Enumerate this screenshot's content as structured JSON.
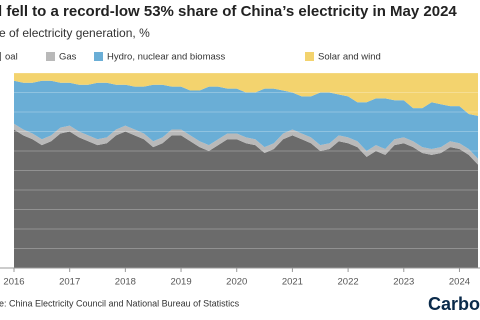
{
  "chart_data": {
    "type": "stacked-area",
    "title": "l fell to a record-low 53% share of China’s electricity in May 2024",
    "subtitle": "e of electricity generation, %",
    "source": "e: China Electricity Council and National Bureau of Statistics",
    "logo": "CarbonB",
    "x": [
      2016,
      2016.167,
      2016.333,
      2016.5,
      2016.667,
      2016.833,
      2017,
      2017.167,
      2017.333,
      2017.5,
      2017.667,
      2017.833,
      2018,
      2018.167,
      2018.333,
      2018.5,
      2018.667,
      2018.833,
      2019,
      2019.167,
      2019.333,
      2019.5,
      2019.667,
      2019.833,
      2020,
      2020.167,
      2020.333,
      2020.5,
      2020.667,
      2020.833,
      2021,
      2021.167,
      2021.333,
      2021.5,
      2021.667,
      2021.833,
      2022,
      2022.167,
      2022.333,
      2022.5,
      2022.667,
      2022.833,
      2023,
      2023.167,
      2023.333,
      2023.5,
      2023.667,
      2023.833,
      2024,
      2024.167,
      2024.333
    ],
    "xlim": [
      2016,
      2024.333
    ],
    "xticks": [
      2016,
      2017,
      2018,
      2019,
      2020,
      2021,
      2022,
      2023,
      2024
    ],
    "ylim": [
      0,
      100
    ],
    "yticks": [
      0,
      10,
      20,
      30,
      40,
      50,
      60,
      70,
      80,
      90,
      100
    ],
    "grid": true,
    "series": [
      {
        "name": "oal",
        "color": "#6b6b6b",
        "values": [
          71,
          68,
          66,
          63,
          65,
          69,
          70,
          67,
          65,
          63,
          64,
          68,
          70,
          68,
          66,
          62,
          64,
          68,
          68,
          65,
          62,
          60,
          63,
          66,
          66,
          64,
          63,
          59,
          61,
          66,
          68,
          66,
          64,
          60,
          61,
          65,
          64,
          62,
          57,
          60,
          58,
          63,
          64,
          62,
          59,
          58,
          59,
          62,
          61,
          58,
          53
        ]
      },
      {
        "name": "Gas",
        "color": "#b9b9b9",
        "values": [
          3,
          3,
          3,
          3,
          3,
          3,
          3,
          3,
          3,
          3,
          3,
          3,
          3,
          3,
          3,
          3,
          3,
          3,
          3,
          3,
          3,
          3,
          3,
          3,
          3,
          3,
          3,
          3,
          3,
          3,
          3,
          3,
          3,
          3,
          3,
          3,
          3,
          3,
          3,
          3,
          3,
          3,
          3,
          3,
          3,
          3,
          3,
          3,
          3,
          3,
          3
        ]
      },
      {
        "name": "Hydro, nuclear and biomass",
        "color": "#6aaed6",
        "values": [
          22,
          24,
          26,
          30,
          28,
          23,
          22,
          24,
          26,
          29,
          28,
          23,
          21,
          22,
          24,
          29,
          27,
          22,
          22,
          23,
          26,
          30,
          27,
          23,
          23,
          23,
          24,
          30,
          28,
          22,
          19,
          19,
          21,
          27,
          26,
          21,
          21,
          20,
          25,
          24,
          26,
          20,
          19,
          17,
          20,
          24,
          22,
          18,
          19,
          18,
          22
        ]
      },
      {
        "name": "Solar and wind",
        "color": "#f3d36e",
        "values": [
          4,
          5,
          5,
          4,
          4,
          5,
          5,
          6,
          6,
          5,
          5,
          6,
          6,
          7,
          7,
          6,
          6,
          7,
          7,
          9,
          9,
          7,
          7,
          8,
          8,
          10,
          10,
          8,
          8,
          9,
          10,
          12,
          12,
          10,
          10,
          11,
          12,
          15,
          15,
          13,
          13,
          14,
          14,
          18,
          18,
          15,
          16,
          17,
          17,
          21,
          22
        ]
      }
    ]
  }
}
